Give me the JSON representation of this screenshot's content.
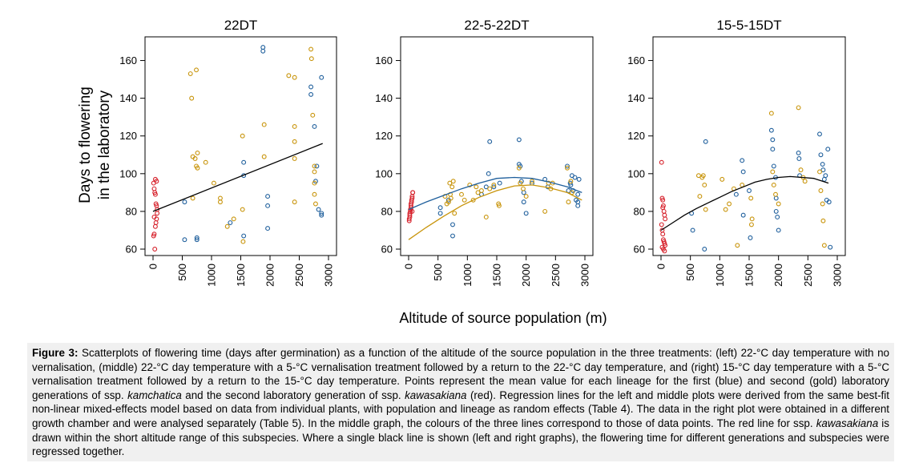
{
  "figure": {
    "ylabel_line1": "Days to flowering",
    "ylabel_line2": "in the laboratory",
    "xlabel": "Altitude of source population (m)"
  },
  "colors": {
    "blue": "#1f5f9c",
    "gold": "#c8940a",
    "red": "#d6202a",
    "line": "#000000"
  },
  "caption": {
    "label": "Figure 3:",
    "part1": "Scatterplots of flowering time (days after germination) as a function of the altitude of the source population in the three treatments: (left) 22-°C day temperature with no vernalisation, (middle) 22-°C day temperature with a 5-°C vernalisation treatment followed by a return to the 22-°C day temperature, and (right) 15-°C day temperature with a 5-°C vernalisation treatment followed by a return to the 15-°C day temperature. Points represent the mean value for each lineage for the first (blue) and second (gold) laboratory generations of ssp.",
    "kamchatica": "kamchatica",
    "part2": "and the second laboratory generation of ssp.",
    "kawasakiana": "kawasakiana",
    "part3": "(red). Regression lines for the left and middle plots were derived from the same best-fit non-linear mixed-effects model based on data from individual plants, with population and lineage as random effects (Table 4). The data in the right plot were obtained in a different growth chamber and were analysed separately (Table 5). In the middle graph, the colours of the three lines correspond to those of data points. The red line for ssp.",
    "kawasakiana2": "kawasakiana",
    "part4": "is drawn within the short altitude range of this subspecies. Where a single black line is shown (left and right graphs), the flowering time for different generations and subspecies were regressed together."
  },
  "chart_data": [
    {
      "type": "scatter",
      "title": "22DT",
      "xlabel": "Altitude of source population (m)",
      "ylabel": "Days to flowering in the laboratory",
      "xlim": [
        0,
        3000
      ],
      "ylim": [
        60,
        170
      ],
      "xticks": [
        0,
        500,
        1000,
        1500,
        2000,
        2500,
        3000
      ],
      "yticks": [
        60,
        80,
        100,
        120,
        140,
        160
      ],
      "series": [
        {
          "name": "first generation ssp. kamchatica",
          "color": "blue",
          "x": [
            540,
            540,
            750,
            750,
            1320,
            1550,
            1550,
            1550,
            1880,
            1880,
            1960,
            1960,
            1960,
            2700,
            2700,
            2760,
            2780,
            2800,
            2830,
            2880,
            2880,
            2880
          ],
          "y": [
            85,
            65,
            66,
            65,
            74,
            106,
            99,
            67,
            167,
            165,
            88,
            83,
            71,
            146,
            142,
            125,
            96,
            104,
            81,
            151,
            79,
            78
          ]
        },
        {
          "name": "second generation ssp. kamchatica",
          "color": "gold",
          "x": [
            640,
            660,
            680,
            680,
            720,
            740,
            740,
            760,
            760,
            900,
            1040,
            1150,
            1150,
            1270,
            1380,
            1530,
            1530,
            1540,
            1900,
            1900,
            2320,
            2420,
            2420,
            2420,
            2420,
            2420,
            2700,
            2710,
            2730,
            2760,
            2760,
            2760,
            2760,
            2780
          ],
          "y": [
            153,
            140,
            109,
            87,
            108,
            155,
            104,
            103,
            111,
            106,
            95,
            87,
            85,
            72,
            76,
            120,
            81,
            64,
            126,
            109,
            152,
            151,
            125,
            117,
            108,
            85,
            166,
            161,
            131,
            104,
            101,
            95,
            89,
            84
          ]
        },
        {
          "name": "ssp. kawasakiana",
          "color": "red",
          "x": [
            10,
            20,
            30,
            40,
            50,
            60,
            70,
            10,
            20,
            30,
            40,
            50,
            60,
            70,
            20,
            40,
            60
          ],
          "y": [
            67,
            68,
            60,
            72,
            74,
            76,
            79,
            95,
            92,
            90,
            89,
            84,
            83,
            81,
            77,
            97,
            96
          ]
        }
      ],
      "regression": [
        {
          "color": "line",
          "x": [
            0,
            2900
          ],
          "y": [
            80,
            116
          ]
        }
      ]
    },
    {
      "type": "scatter",
      "title": "22-5-22DT",
      "xlabel": "Altitude of source population (m)",
      "ylabel": "Days to flowering in the laboratory",
      "xlim": [
        0,
        3000
      ],
      "ylim": [
        60,
        170
      ],
      "xticks": [
        0,
        500,
        1000,
        1500,
        2000,
        2500,
        3000
      ],
      "yticks": [
        60,
        80,
        100,
        120,
        140,
        160
      ],
      "series": [
        {
          "name": "first generation ssp. kamchatica",
          "color": "blue",
          "x": [
            540,
            540,
            680,
            750,
            750,
            1240,
            1320,
            1360,
            1380,
            1450,
            1550,
            1880,
            1880,
            1900,
            1920,
            1960,
            1960,
            2000,
            2100,
            2320,
            2370,
            2700,
            2720,
            2750,
            2760,
            2780,
            2800,
            2830,
            2850,
            2880,
            2880,
            2880,
            2900
          ],
          "y": [
            82,
            79,
            86,
            73,
            67,
            89,
            93,
            100,
            117,
            93,
            95,
            118,
            105,
            104,
            96,
            90,
            85,
            79,
            95,
            97,
            93,
            104,
            91,
            95,
            94,
            99,
            91,
            98,
            86,
            89,
            85,
            83,
            97
          ]
        },
        {
          "name": "second generation ssp. kamchatica",
          "color": "gold",
          "x": [
            620,
            650,
            680,
            700,
            710,
            720,
            740,
            760,
            780,
            900,
            950,
            1040,
            1100,
            1150,
            1180,
            1240,
            1320,
            1380,
            1450,
            1530,
            1540,
            1880,
            1900,
            1950,
            2000,
            2100,
            2320,
            2380,
            2420,
            2450,
            2700,
            2720,
            2760,
            2780
          ],
          "y": [
            88,
            84,
            85,
            95,
            89,
            87,
            93,
            96,
            79,
            89,
            86,
            94,
            86,
            93,
            90,
            91,
            77,
            92,
            94,
            84,
            83,
            103,
            95,
            92,
            88,
            96,
            80,
            95,
            92,
            95,
            103,
            85,
            96,
            90
          ]
        },
        {
          "name": "ssp. kawasakiana",
          "color": "red",
          "x": [
            10,
            20,
            30,
            40,
            50,
            60,
            70,
            10,
            20,
            30,
            40,
            50,
            60,
            70,
            20,
            40,
            60
          ],
          "y": [
            75,
            78,
            80,
            82,
            86,
            88,
            90,
            76,
            79,
            81,
            83,
            85,
            87,
            90,
            77,
            84,
            80
          ]
        }
      ],
      "regression": [
        {
          "color": "blue",
          "x": [
            0,
            300,
            600,
            900,
            1200,
            1500,
            1800,
            2100,
            2400,
            2700,
            2950
          ],
          "y": [
            81,
            85,
            88.5,
            92,
            95,
            97.5,
            98,
            97.5,
            95.5,
            93,
            90
          ]
        },
        {
          "color": "gold",
          "x": [
            0,
            300,
            600,
            900,
            1200,
            1500,
            1800,
            2100,
            2400,
            2700,
            2950
          ],
          "y": [
            65,
            71.5,
            77.5,
            83,
            87.5,
            91,
            93.5,
            94,
            92.5,
            90,
            86
          ]
        },
        {
          "color": "red",
          "x": [
            0,
            80
          ],
          "y": [
            80,
            81
          ]
        }
      ]
    },
    {
      "type": "scatter",
      "title": "15-5-15DT",
      "xlabel": "Altitude of source population (m)",
      "ylabel": "Days to flowering in the laboratory",
      "xlim": [
        0,
        3000
      ],
      "ylim": [
        60,
        170
      ],
      "xticks": [
        0,
        500,
        1000,
        1500,
        2000,
        2500,
        3000
      ],
      "yticks": [
        60,
        80,
        100,
        120,
        140,
        160
      ],
      "series": [
        {
          "name": "first generation ssp. kamchatica",
          "color": "blue",
          "x": [
            520,
            540,
            740,
            760,
            1280,
            1380,
            1400,
            1400,
            1500,
            1520,
            1880,
            1900,
            1900,
            1920,
            1950,
            1960,
            1960,
            1980,
            2000,
            2340,
            2350,
            2360,
            2700,
            2720,
            2750,
            2760,
            2780,
            2800,
            2820,
            2840,
            2860,
            2880
          ],
          "y": [
            79,
            70,
            60,
            117,
            89,
            107,
            101,
            78,
            91,
            66,
            123,
            118,
            113,
            104,
            98,
            87,
            80,
            77,
            70,
            111,
            108,
            99,
            121,
            110,
            105,
            102,
            97,
            99,
            86,
            113,
            85,
            61
          ]
        },
        {
          "name": "second generation ssp. kamchatica",
          "color": "gold",
          "x": [
            640,
            660,
            700,
            720,
            740,
            760,
            1040,
            1100,
            1160,
            1240,
            1300,
            1380,
            1530,
            1540,
            1550,
            1880,
            1900,
            1920,
            1950,
            2000,
            2340,
            2380,
            2420,
            2450,
            2700,
            2720,
            2750,
            2760,
            2780
          ],
          "y": [
            99,
            88,
            98,
            99,
            94,
            81,
            97,
            81,
            84,
            92,
            62,
            94,
            87,
            73,
            76,
            132,
            101,
            94,
            89,
            84,
            135,
            102,
            98,
            96,
            101,
            91,
            84,
            75,
            62
          ]
        },
        {
          "name": "ssp. kawasakiana",
          "color": "red",
          "x": [
            10,
            20,
            30,
            40,
            50,
            60,
            70,
            10,
            20,
            30,
            40,
            50,
            60,
            70,
            20,
            40,
            60,
            30
          ],
          "y": [
            106,
            87,
            86,
            83,
            80,
            78,
            76,
            73,
            70,
            68,
            65,
            64,
            63,
            62,
            61,
            60,
            59,
            82
          ]
        }
      ],
      "regression": [
        {
          "color": "line",
          "x": [
            0,
            200,
            400,
            600,
            800,
            1000,
            1200,
            1400,
            1600,
            1800,
            2000,
            2200,
            2400,
            2600,
            2850
          ],
          "y": [
            70,
            74,
            78,
            81.5,
            84.5,
            87.5,
            90.5,
            93,
            95.5,
            97,
            98,
            98.5,
            98,
            97.5,
            95
          ]
        }
      ]
    }
  ]
}
